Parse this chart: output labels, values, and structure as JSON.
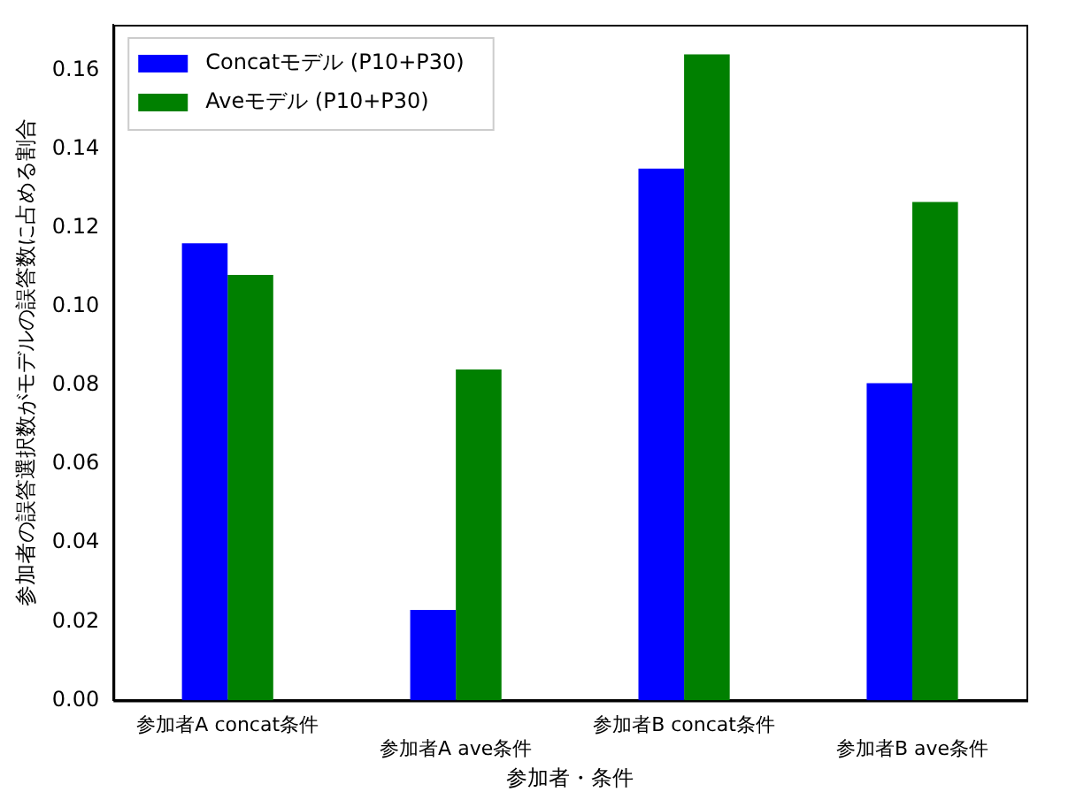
{
  "chart_data": {
    "type": "bar",
    "xlabel": "参加者・条件",
    "ylabel": "参加者の誤答選択数がモデルの誤答数に占める割合",
    "categories": [
      "参加者A concat条件",
      "参加者A ave条件",
      "参加者B concat条件",
      "参加者B ave条件"
    ],
    "series": [
      {
        "name": "Concatモデル (P10+P30)",
        "color": "#0000ff",
        "values": [
          0.116,
          0.023,
          0.135,
          0.0805
        ]
      },
      {
        "name": "Aveモデル (P10+P30)",
        "color": "#008000",
        "values": [
          0.108,
          0.084,
          0.164,
          0.1265
        ]
      }
    ],
    "ylim": [
      0,
      0.1715
    ],
    "yticks": [
      {
        "value": 0,
        "label": "0.00"
      },
      {
        "value": 0.02,
        "label": "0.02"
      },
      {
        "value": 0.04,
        "label": "0.04"
      },
      {
        "value": 0.06,
        "label": "0.06"
      },
      {
        "value": 0.08,
        "label": "0.08"
      },
      {
        "value": 0.1,
        "label": "0.10"
      },
      {
        "value": 0.12,
        "label": "0.12"
      },
      {
        "value": 0.14,
        "label": "0.14"
      },
      {
        "value": 0.16,
        "label": "0.16"
      }
    ],
    "grid": false,
    "legend": "top left"
  }
}
